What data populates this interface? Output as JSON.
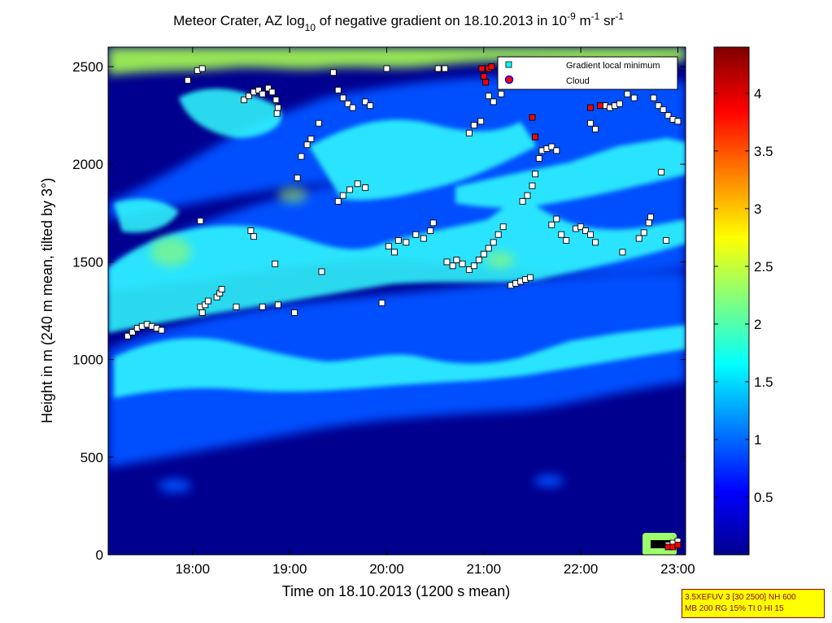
{
  "chart_data": {
    "type": "heatmap",
    "title": {
      "p1": "Meteor Crater, AZ log",
      "sub1": "10",
      "p2": " of negative gradient on 18.10.2013 in 10",
      "sup1": "-9",
      "p3": " m",
      "sup2": "-1",
      "p4": " sr",
      "sup3": "-1"
    },
    "xlabel": "Time on 18.10.2013 (1200 s mean)",
    "ylabel": "Height in m (240 m mean, tilted by 3°)",
    "xlim": [
      17.13,
      23.08
    ],
    "ylim": [
      0,
      2600
    ],
    "xticks": [
      18,
      19,
      20,
      21,
      22,
      23
    ],
    "xtick_labels": [
      "18:00",
      "19:00",
      "20:00",
      "21:00",
      "22:00",
      "23:00"
    ],
    "yticks": [
      0,
      500,
      1000,
      1500,
      2000,
      2500
    ],
    "ytick_labels": [
      "0",
      "500",
      "1000",
      "1500",
      "2000",
      "2500"
    ],
    "colorbar": {
      "colormap": "jet",
      "range": [
        0,
        4.4
      ],
      "ticks": [
        0.5,
        1,
        1.5,
        2,
        2.5,
        3,
        3.5,
        4
      ],
      "tick_labels": [
        "0.5",
        "1",
        "1.5",
        "2",
        "2.5",
        "3",
        "3.5",
        "4"
      ]
    },
    "legend": {
      "placement": "top-right",
      "entries": [
        "Gradient local minimum",
        "Cloud"
      ]
    },
    "colors": {
      "minimum_marker": "#00ffff",
      "cloud_marker": "#ff0000",
      "background": "#00008f"
    },
    "series": [
      {
        "name": "Gradient local minimum",
        "points": [
          [
            17.33,
            1120
          ],
          [
            17.38,
            1140
          ],
          [
            17.43,
            1160
          ],
          [
            17.48,
            1170
          ],
          [
            17.53,
            1180
          ],
          [
            17.58,
            1170
          ],
          [
            17.63,
            1160
          ],
          [
            17.68,
            1150
          ],
          [
            17.95,
            2430
          ],
          [
            18.05,
            2480
          ],
          [
            18.1,
            2490
          ],
          [
            18.08,
            1270
          ],
          [
            18.1,
            1240
          ],
          [
            18.13,
            1280
          ],
          [
            18.16,
            1300
          ],
          [
            18.08,
            1710
          ],
          [
            18.25,
            1320
          ],
          [
            18.28,
            1340
          ],
          [
            18.3,
            1360
          ],
          [
            18.45,
            1270
          ],
          [
            18.53,
            2330
          ],
          [
            18.58,
            2350
          ],
          [
            18.63,
            2370
          ],
          [
            18.68,
            2380
          ],
          [
            18.72,
            2360
          ],
          [
            18.78,
            2390
          ],
          [
            18.82,
            2370
          ],
          [
            18.86,
            2330
          ],
          [
            18.88,
            2290
          ],
          [
            18.87,
            2260
          ],
          [
            18.6,
            1660
          ],
          [
            18.63,
            1630
          ],
          [
            18.72,
            1270
          ],
          [
            18.85,
            1490
          ],
          [
            18.88,
            1280
          ],
          [
            19.05,
            1240
          ],
          [
            19.08,
            1930
          ],
          [
            19.12,
            2040
          ],
          [
            19.18,
            2100
          ],
          [
            19.22,
            2130
          ],
          [
            19.3,
            2210
          ],
          [
            19.33,
            1450
          ],
          [
            19.45,
            2470
          ],
          [
            19.5,
            2380
          ],
          [
            19.55,
            2340
          ],
          [
            19.6,
            2310
          ],
          [
            19.65,
            2290
          ],
          [
            19.5,
            1810
          ],
          [
            19.55,
            1840
          ],
          [
            19.62,
            1870
          ],
          [
            19.7,
            1900
          ],
          [
            19.78,
            1880
          ],
          [
            19.78,
            2320
          ],
          [
            19.83,
            2300
          ],
          [
            19.95,
            1290
          ],
          [
            20.0,
            2490
          ],
          [
            20.02,
            1580
          ],
          [
            20.08,
            1550
          ],
          [
            20.12,
            1610
          ],
          [
            20.2,
            1600
          ],
          [
            20.3,
            1640
          ],
          [
            20.38,
            1620
          ],
          [
            20.45,
            1660
          ],
          [
            20.48,
            1700
          ],
          [
            20.53,
            2490
          ],
          [
            20.6,
            2490
          ],
          [
            20.62,
            1500
          ],
          [
            20.68,
            1480
          ],
          [
            20.72,
            1510
          ],
          [
            20.78,
            1490
          ],
          [
            20.85,
            1460
          ],
          [
            20.9,
            1480
          ],
          [
            20.95,
            1510
          ],
          [
            20.85,
            2160
          ],
          [
            20.9,
            2200
          ],
          [
            20.97,
            2220
          ],
          [
            21.0,
            1540
          ],
          [
            21.05,
            1570
          ],
          [
            21.1,
            1600
          ],
          [
            21.15,
            1640
          ],
          [
            21.2,
            1680
          ],
          [
            21.05,
            2350
          ],
          [
            21.1,
            2320
          ],
          [
            21.18,
            2360
          ],
          [
            21.28,
            1380
          ],
          [
            21.33,
            1390
          ],
          [
            21.38,
            1400
          ],
          [
            21.43,
            1410
          ],
          [
            21.48,
            1420
          ],
          [
            21.4,
            1810
          ],
          [
            21.45,
            1840
          ],
          [
            21.5,
            1890
          ],
          [
            21.53,
            1950
          ],
          [
            21.57,
            2030
          ],
          [
            21.6,
            2070
          ],
          [
            21.65,
            2080
          ],
          [
            21.7,
            2090
          ],
          [
            21.75,
            2070
          ],
          [
            21.7,
            1690
          ],
          [
            21.75,
            1720
          ],
          [
            21.8,
            1640
          ],
          [
            21.85,
            1610
          ],
          [
            21.95,
            1670
          ],
          [
            22.0,
            1680
          ],
          [
            22.05,
            1660
          ],
          [
            22.1,
            1640
          ],
          [
            22.15,
            1600
          ],
          [
            22.1,
            2210
          ],
          [
            22.15,
            2180
          ],
          [
            22.25,
            2300
          ],
          [
            22.3,
            2290
          ],
          [
            22.35,
            2300
          ],
          [
            22.4,
            2310
          ],
          [
            22.43,
            1550
          ],
          [
            22.48,
            2360
          ],
          [
            22.55,
            2340
          ],
          [
            22.6,
            1620
          ],
          [
            22.65,
            1650
          ],
          [
            22.7,
            1700
          ],
          [
            22.72,
            1730
          ],
          [
            22.75,
            2340
          ],
          [
            22.8,
            2300
          ],
          [
            22.85,
            2280
          ],
          [
            22.88,
            1610
          ],
          [
            22.9,
            2250
          ],
          [
            22.95,
            2230
          ],
          [
            23.0,
            2220
          ],
          [
            22.83,
            1960
          ],
          [
            22.9,
            50
          ],
          [
            22.95,
            60
          ],
          [
            23.0,
            70
          ]
        ]
      },
      {
        "name": "Cloud",
        "points": [
          [
            20.98,
            2490
          ],
          [
            21.0,
            2450
          ],
          [
            21.02,
            2420
          ],
          [
            21.05,
            2490
          ],
          [
            21.08,
            2500
          ],
          [
            21.5,
            2240
          ],
          [
            21.53,
            2140
          ],
          [
            22.1,
            2290
          ],
          [
            22.2,
            2300
          ],
          [
            22.9,
            40
          ],
          [
            22.95,
            40
          ],
          [
            23.0,
            50
          ]
        ]
      }
    ]
  },
  "stamp": {
    "line1": "3.5XEFUV 3 [30 2500] NH 600",
    "line2": "MB 200 RG 15% TI 0 HI 15"
  }
}
